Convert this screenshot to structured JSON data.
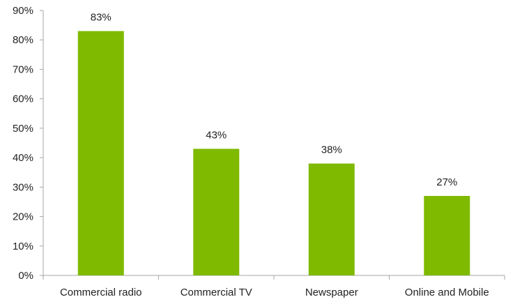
{
  "chart_data": {
    "type": "bar",
    "categories": [
      "Commercial radio",
      "Commercial TV",
      "Newspaper",
      "Online and Mobile"
    ],
    "values": [
      83,
      43,
      38,
      27
    ],
    "data_labels": [
      "83%",
      "43%",
      "38%",
      "27%"
    ],
    "ylim": [
      0,
      90
    ],
    "yticks": [
      0,
      10,
      20,
      30,
      40,
      50,
      60,
      70,
      80,
      90
    ],
    "ytick_labels": [
      "0%",
      "10%",
      "20%",
      "30%",
      "40%",
      "50%",
      "60%",
      "70%",
      "80%",
      "90%"
    ],
    "grid": false,
    "legend": "none",
    "colors": {
      "bar": "#7fba00",
      "axis": "#a6a6a6"
    }
  }
}
